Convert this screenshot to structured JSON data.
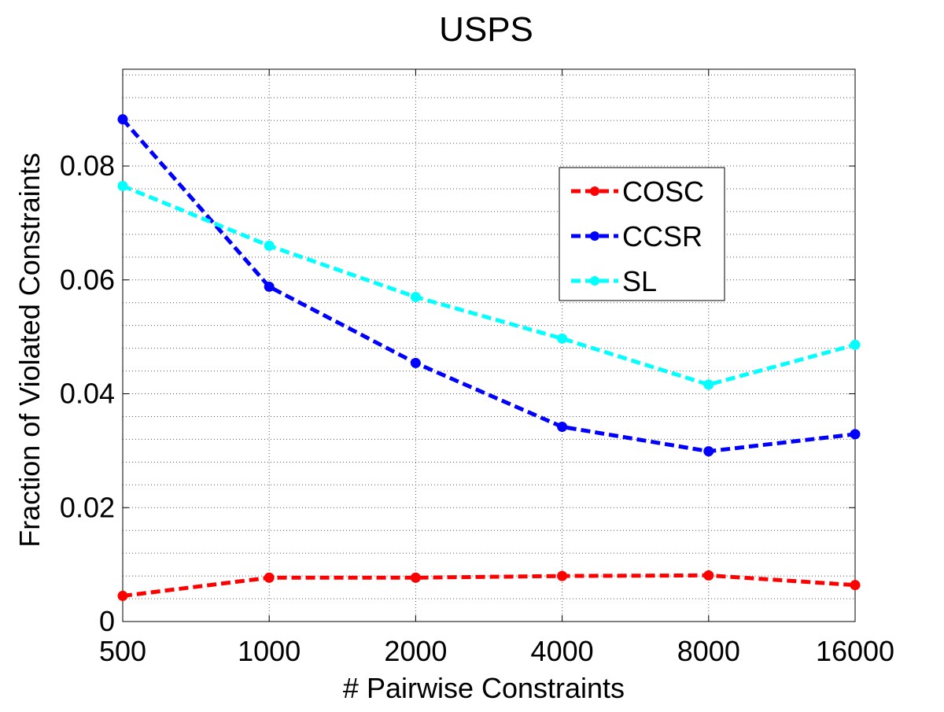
{
  "chart_data": {
    "type": "line",
    "title": "USPS",
    "xlabel": "# Pairwise Constraints",
    "ylabel": "Fraction of Violated Constraints",
    "categories": [
      "500",
      "1000",
      "2000",
      "4000",
      "8000",
      "16000"
    ],
    "ylim": [
      0,
      0.097
    ],
    "yticks": [
      0,
      0.02,
      0.04,
      0.06,
      0.08
    ],
    "ytick_labels": [
      "0",
      "0.02",
      "0.04",
      "0.06",
      "0.08"
    ],
    "grid": true,
    "legend_position": "upper-right",
    "series": [
      {
        "name": "COSC",
        "color": "#ff0000",
        "values": [
          0.0045,
          0.0077,
          0.0077,
          0.008,
          0.0081,
          0.0064
        ]
      },
      {
        "name": "CCSR",
        "color": "#0000ff",
        "values": [
          0.0882,
          0.0588,
          0.0454,
          0.0342,
          0.0299,
          0.0329
        ]
      },
      {
        "name": "SL",
        "color": "#00ffff",
        "values": [
          0.0765,
          0.066,
          0.057,
          0.0497,
          0.0416,
          0.0486
        ]
      }
    ]
  }
}
